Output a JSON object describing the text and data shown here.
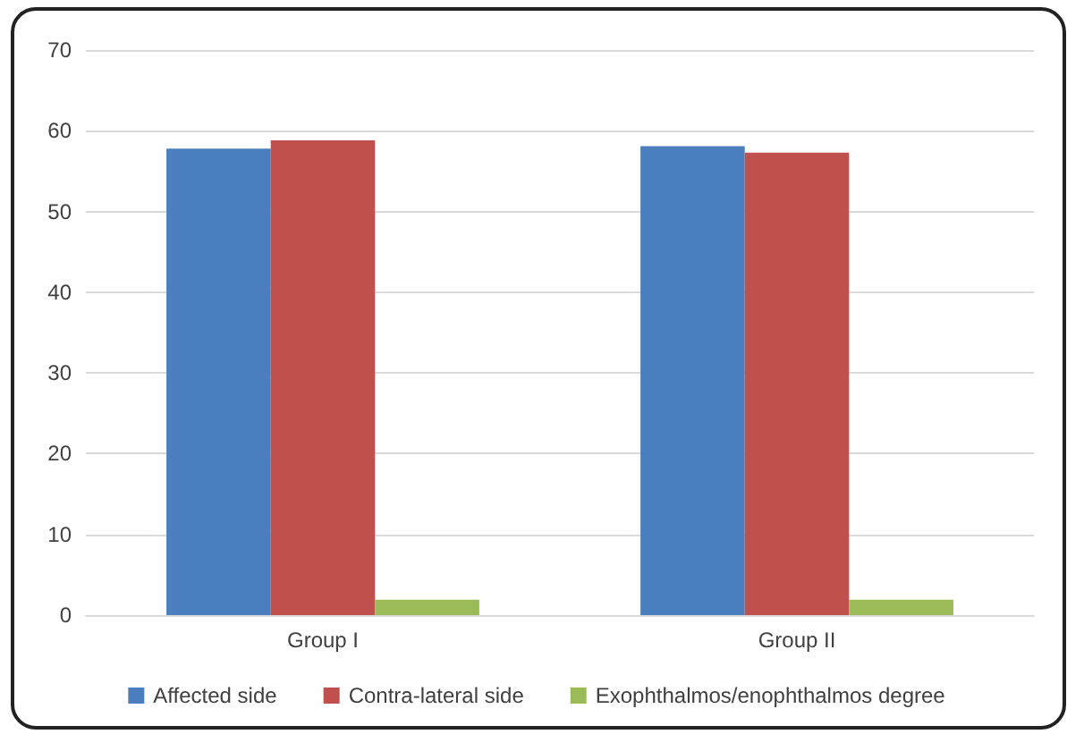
{
  "chart_data": {
    "type": "bar",
    "categories": [
      "Group I",
      "Group II"
    ],
    "series": [
      {
        "name": "Affected side",
        "color": "#4a7ebf",
        "values": [
          57.8,
          58.1
        ]
      },
      {
        "name": "Contra-lateral side",
        "color": "#c0504d",
        "values": [
          58.8,
          57.3
        ]
      },
      {
        "name": "Exophthalmos/enophthalmos degree",
        "color": "#9bbb59",
        "values": [
          1.9,
          1.9
        ]
      }
    ],
    "ylim": [
      0,
      70
    ],
    "yticks": [
      0,
      10,
      20,
      30,
      40,
      50,
      60,
      70
    ],
    "grid": "y",
    "legend": "bottom"
  }
}
